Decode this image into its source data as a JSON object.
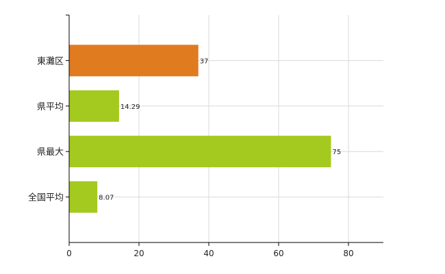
{
  "chart_data": {
    "type": "bar",
    "orientation": "horizontal",
    "categories": [
      "東灘区",
      "県平均",
      "県最大",
      "全国平均"
    ],
    "values": [
      37,
      14.29,
      75,
      8.07
    ],
    "value_labels": [
      "37",
      "14.29",
      "75",
      "8.07"
    ],
    "bar_colors": [
      "#e07b20",
      "#a4c91f",
      "#a4c91f",
      "#a4c91f"
    ],
    "xlim": [
      0,
      90
    ],
    "xticks": [
      0,
      20,
      40,
      60,
      80
    ],
    "xtick_labels": [
      "0",
      "20",
      "40",
      "60",
      "80"
    ],
    "grid": true
  }
}
